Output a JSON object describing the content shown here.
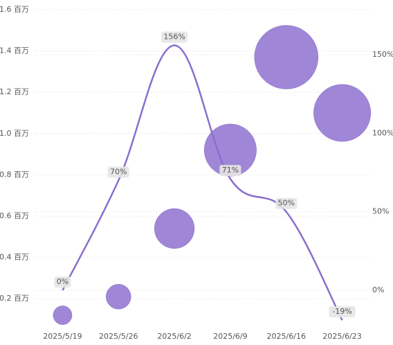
{
  "chart_data": {
    "type": "bubble-line",
    "categories": [
      "2025/5/19",
      "2025/5/26",
      "2025/6/2",
      "2025/6/9",
      "2025/6/16",
      "2025/6/23"
    ],
    "bubbles": {
      "values": [
        0.12,
        0.21,
        0.54,
        0.92,
        1.37,
        1.1
      ],
      "color": "#9b7fd4"
    },
    "line": {
      "values": [
        0,
        70,
        156,
        71,
        50,
        -19
      ],
      "value_labels": [
        "0%",
        "70%",
        "156%",
        "71%",
        "50%",
        "-19%"
      ],
      "color": "#8a6dd0",
      "axis": "y2"
    },
    "ylim": [
      0.1,
      1.6
    ],
    "yticks": [
      {
        "value": 0.2,
        "label": "0.2 百万"
      },
      {
        "value": 0.4,
        "label": "0.4 百万"
      },
      {
        "value": 0.6,
        "label": "0.6 百万"
      },
      {
        "value": 0.8,
        "label": "0.8 百万"
      },
      {
        "value": 1.0,
        "label": "1.0 百万"
      },
      {
        "value": 1.2,
        "label": "1.2 百万"
      },
      {
        "value": 1.4,
        "label": "1.4 百万"
      },
      {
        "value": 1.6,
        "label": "1.6 百万"
      }
    ],
    "y2lim": [
      -18.5,
      178.7
    ],
    "y2ticks": [
      {
        "value": 0,
        "label": "0%"
      },
      {
        "value": 50,
        "label": "50%"
      },
      {
        "value": 100,
        "label": "100%"
      },
      {
        "value": 150,
        "label": "150%"
      }
    ],
    "grid": true
  }
}
